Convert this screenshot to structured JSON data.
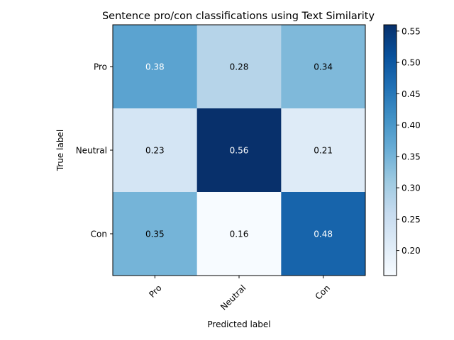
{
  "chart_data": {
    "type": "heatmap",
    "title": "Sentence pro/con classifications using Text Similarity",
    "xlabel": "Predicted label",
    "ylabel": "True label",
    "x_categories": [
      "Pro",
      "Neutral",
      "Con"
    ],
    "y_categories": [
      "Pro",
      "Neutral",
      "Con"
    ],
    "values": [
      [
        0.38,
        0.28,
        0.34
      ],
      [
        0.23,
        0.56,
        0.21
      ],
      [
        0.35,
        0.16,
        0.48
      ]
    ],
    "cell_labels": [
      [
        "0.38",
        "0.28",
        "0.34"
      ],
      [
        "0.23",
        "0.56",
        "0.21"
      ],
      [
        "0.35",
        "0.16",
        "0.48"
      ]
    ],
    "colormap": "Blues",
    "colorbar": {
      "range": [
        0.16,
        0.56
      ],
      "ticks": [
        0.2,
        0.25,
        0.3,
        0.35,
        0.4,
        0.45,
        0.5,
        0.55
      ],
      "tick_labels": [
        "0.20",
        "0.25",
        "0.30",
        "0.35",
        "0.40",
        "0.45",
        "0.50",
        "0.55"
      ]
    },
    "grid": false
  }
}
